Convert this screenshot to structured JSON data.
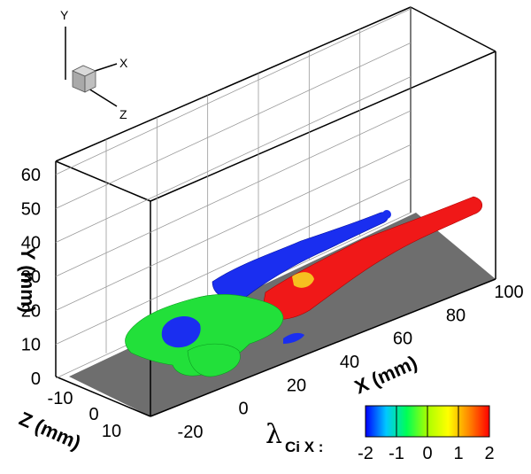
{
  "chart_data": {
    "type": "3d-isosurface",
    "axes": {
      "x": {
        "label": "X (mm)",
        "ticks": [
          "-20",
          "0",
          "20",
          "40",
          "60",
          "80",
          "100"
        ]
      },
      "y": {
        "label": "Y (mm)",
        "ticks": [
          "0",
          "10",
          "20",
          "30",
          "40",
          "50",
          "60"
        ]
      },
      "z": {
        "label": "Z (mm)",
        "ticks": [
          "-10",
          "0",
          "10"
        ]
      }
    },
    "triad": {
      "x": "X",
      "y": "Y",
      "z": "Z"
    },
    "legend": {
      "symbol": "λ",
      "subscript": "Ci X :",
      "ticks": [
        "-2",
        "-1",
        "0",
        "1",
        "2"
      ],
      "range": [
        -2,
        2
      ],
      "colors": [
        "#0000ff",
        "#00c8ff",
        "#00ff55",
        "#aaff00",
        "#ffff00",
        "#ff8800",
        "#ff0000"
      ]
    },
    "surface_colors": {
      "negative": "#1a2ef0",
      "zero": "#22e03a",
      "positive": "#f01818",
      "floor": "#6e6e6e"
    }
  }
}
